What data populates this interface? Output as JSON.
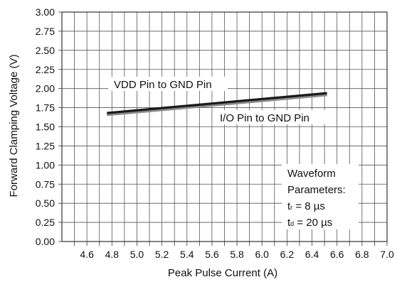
{
  "chart_data": {
    "type": "line",
    "title": "",
    "xlabel": "Peak Pulse Current (A)",
    "ylabel": "Forward Clamping Voltage (V)",
    "xlim": [
      4.4,
      7.0
    ],
    "ylim": [
      0.0,
      3.0
    ],
    "x_ticks": [
      "4.6",
      "4.8",
      "5.0",
      "5.2",
      "5.4",
      "5.6",
      "5.8",
      "6.0",
      "6.2",
      "6.4",
      "6.6",
      "6.8",
      "7.0"
    ],
    "y_ticks": [
      "0.00",
      "0.25",
      "0.50",
      "0.75",
      "1.00",
      "1.25",
      "1.50",
      "1.75",
      "2.00",
      "2.25",
      "2.50",
      "2.75",
      "3.00"
    ],
    "grid": true,
    "series": [
      {
        "name": "VDD Pin to GND Pin",
        "color": "#1a1a1a",
        "x": [
          4.76,
          6.52
        ],
        "y": [
          1.68,
          1.94
        ]
      },
      {
        "name": "I/O Pin to GND Pin",
        "color": "#8a8a8a",
        "x": [
          4.76,
          6.52
        ],
        "y": [
          1.655,
          1.915
        ]
      }
    ],
    "annotation": {
      "line1": "Waveform",
      "line2": "Parameters:",
      "tr_symbol": "t",
      "tr_sub": "r",
      "tr_value": " = 8 µs",
      "td_symbol": "t",
      "td_sub": "d",
      "td_value": " = 20 µs"
    }
  }
}
